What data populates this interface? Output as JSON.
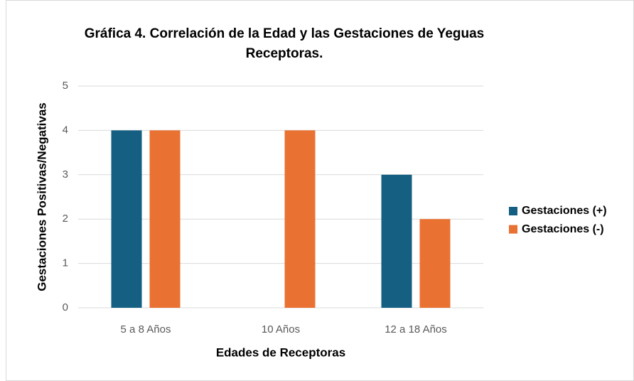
{
  "chart_data": {
    "type": "bar",
    "title": "Gráfica 4. Correlación de la Edad y las Gestaciones de Yeguas Receptoras.",
    "x_label": "Edades de Receptoras",
    "y_label": "Gestaciones Positivas/Negativas",
    "categories": [
      "5 a 8 Años",
      "10 Años",
      "12 a 18 Años"
    ],
    "series": [
      {
        "name": "Gestaciones (+)",
        "color": "#156082",
        "values": [
          4,
          0,
          3
        ]
      },
      {
        "name": "Gestaciones (-)",
        "color": "#e97132",
        "values": [
          4,
          4,
          2
        ]
      }
    ],
    "ylim": [
      0,
      5
    ],
    "yticks": [
      0,
      1,
      2,
      3,
      4,
      5
    ],
    "grid": true,
    "legend": "right"
  }
}
